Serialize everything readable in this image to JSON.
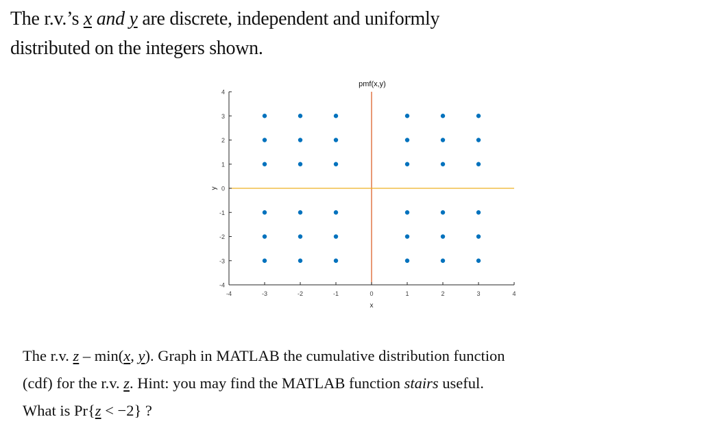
{
  "intro": {
    "line1_pre": "The r.v.’s ",
    "var_x": "x",
    "and": " and ",
    "var_y": "y",
    "line1_post": " are discrete, independent and uniformly",
    "line2": "distributed on the integers shown."
  },
  "question": {
    "l1_pre": "The r.v. ",
    "var_z": "z",
    "l1_mid": " – min(",
    "var_x": "x",
    "comma": ", ",
    "var_y": "y",
    "l1_post": "). Graph in MATLAB the cumulative distribution function",
    "l2_pre": "(cdf) for the r.v. ",
    "l2_mid": ". Hint: you may find the MATLAB function ",
    "l2_func": "stairs",
    "l2_post": " useful.",
    "l3_pre": "What is Pr{",
    "l3_post": " < −2} ?"
  },
  "chart_data": {
    "type": "scatter",
    "title": "pmf(x,y)",
    "xlabel": "x",
    "ylabel": "y",
    "xlim": [
      -4,
      4
    ],
    "ylim": [
      -4,
      4
    ],
    "xticks": [
      -4,
      -3,
      -2,
      -1,
      0,
      1,
      2,
      3,
      4
    ],
    "yticks": [
      -4,
      -3,
      -2,
      -1,
      0,
      1,
      2,
      3,
      4
    ],
    "grid": false,
    "x_support": [
      -3,
      -2,
      -1,
      1,
      2,
      3
    ],
    "y_support": [
      -3,
      -2,
      -1,
      1,
      2,
      3
    ],
    "points_note": "36 equally likely points: every (x,y) with x,y in {-3,-2,-1,1,2,3}",
    "reference_lines": [
      {
        "orientation": "vertical",
        "at": 0,
        "color": "#D95319"
      },
      {
        "orientation": "horizontal",
        "at": 0,
        "color": "#EDB120"
      }
    ],
    "marker_color": "#0072BD"
  },
  "colors": {
    "marker": "#0072BD",
    "vline": "#D95319",
    "hline": "#EDB120",
    "axis": "#262626",
    "tick_label": "#404040"
  }
}
